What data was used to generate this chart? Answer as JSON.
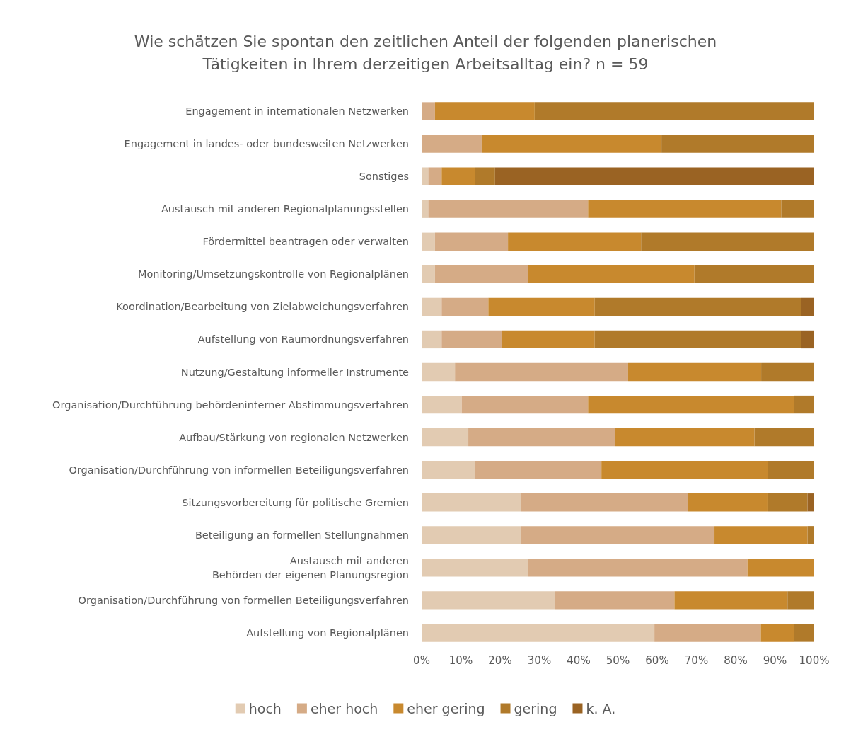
{
  "chart_data": {
    "type": "bar",
    "orientation": "horizontal",
    "stacked": true,
    "title": "Wie schätzen Sie spontan den zeitlichen Anteil der folgenden planerischen\nTätigkeiten in Ihrem derzeitigen Arbeitsalltag ein? n = 59",
    "categories": [
      "Engagement in internationalen Netzwerken",
      "Engagement in landes- oder bundesweiten Netzwerken",
      "Sonstiges",
      "Austausch mit anderen Regionalplanungsstellen",
      "Fördermittel beantragen oder verwalten",
      "Monitoring/Umsetzungskontrolle von Regionalplänen",
      "Koordination/Bearbeitung von Zielabweichungsverfahren",
      "Aufstellung von Raumordnungsverfahren",
      "Nutzung/Gestaltung informeller Instrumente",
      "Organisation/Durchführung behördeninterner Abstimmungsverfahren",
      "Aufbau/Stärkung von regionalen Netzwerken",
      "Organisation/Durchführung von informellen Beteiligungsverfahren",
      "Sitzungsvorbereitung für politische Gremien",
      "Beteiligung an formellen Stellungnahmen",
      "Austausch mit anderen\nBehörden der eigenen Planungsregion",
      "Organisation/Durchführung von formellen Beteiligungsverfahren",
      "Aufstellung von Regionalplänen"
    ],
    "series": [
      {
        "name": "hoch",
        "color": "#e2cbb2",
        "values": [
          0,
          0,
          1.7,
          1.7,
          3.4,
          3.4,
          5.1,
          5.1,
          8.5,
          10.2,
          11.9,
          13.6,
          25.4,
          25.4,
          27.1,
          33.9,
          59.3
        ]
      },
      {
        "name": "eher hoch",
        "color": "#d5ab86",
        "values": [
          3.4,
          15.3,
          3.4,
          40.7,
          18.6,
          23.7,
          11.9,
          15.3,
          44.1,
          32.2,
          37.3,
          32.2,
          42.4,
          49.2,
          55.9,
          30.5,
          27.1
        ]
      },
      {
        "name": "eher gering",
        "color": "#c8892e",
        "values": [
          25.4,
          45.8,
          8.5,
          49.2,
          33.9,
          42.4,
          27.1,
          23.7,
          33.9,
          52.5,
          35.6,
          42.4,
          20.3,
          23.7,
          16.9,
          28.8,
          8.5
        ]
      },
      {
        "name": "gering",
        "color": "#b07a2a",
        "values": [
          71.2,
          39.0,
          5.1,
          8.5,
          44.1,
          30.5,
          52.5,
          52.5,
          13.6,
          5.1,
          15.3,
          11.9,
          10.2,
          1.7,
          0,
          6.8,
          5.1
        ]
      },
      {
        "name": "k. A.",
        "color": "#9a6323",
        "values": [
          0,
          0,
          81.4,
          0,
          0,
          0,
          3.4,
          3.4,
          0,
          0,
          0,
          0,
          1.7,
          0,
          0,
          0,
          0
        ]
      }
    ],
    "xlim": [
      0,
      100
    ],
    "xticks": [
      {
        "value": 0,
        "label": "0%"
      },
      {
        "value": 10,
        "label": "10%"
      },
      {
        "value": 20,
        "label": "20%"
      },
      {
        "value": 30,
        "label": "30%"
      },
      {
        "value": 40,
        "label": "40%"
      },
      {
        "value": 50,
        "label": "50%"
      },
      {
        "value": 60,
        "label": "60%"
      },
      {
        "value": 70,
        "label": "70%"
      },
      {
        "value": 80,
        "label": "80%"
      },
      {
        "value": 90,
        "label": "90%"
      },
      {
        "value": 100,
        "label": "100%"
      }
    ],
    "grid": false,
    "legend": "bottom"
  }
}
